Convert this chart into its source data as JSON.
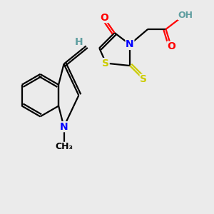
{
  "bg_color": "#ebebeb",
  "atom_colors": {
    "C": "#000000",
    "N": "#0000ff",
    "O": "#ff0000",
    "S": "#cccc00",
    "H": "#5f9ea0"
  },
  "bond_color": "#000000",
  "figsize": [
    3.0,
    3.0
  ],
  "dpi": 100,
  "lw": 1.6,
  "fs": 10,
  "fs_small": 9
}
